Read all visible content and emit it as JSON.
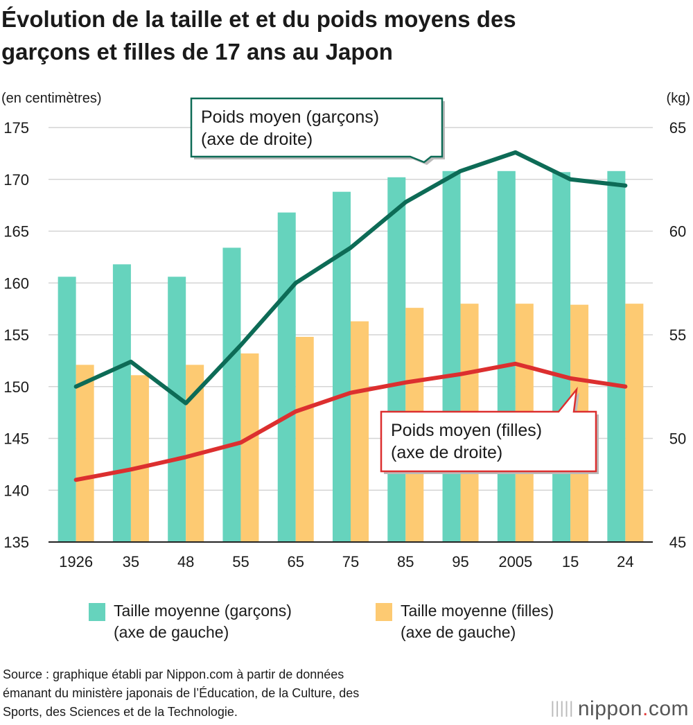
{
  "title": {
    "line1": "Évolution de la taille et et du poids moyens des",
    "line2": "garçons et filles de 17 ans au Japon"
  },
  "colors": {
    "boys_height": "#66d3bd",
    "girls_height": "#fdca72",
    "boys_weight": "#0d6b56",
    "girls_weight": "#dc2f2f",
    "grid": "#d4d4d4"
  },
  "chart_data": {
    "type": "bar",
    "left_axis_unit": "(en centimètres)",
    "right_axis_unit": "(kg)",
    "left_ylim": [
      135,
      175
    ],
    "left_ticks": [
      "175",
      "170",
      "165",
      "160",
      "155",
      "150",
      "145",
      "140",
      "135"
    ],
    "right_ylim": [
      45,
      65
    ],
    "right_ticks": [
      "65",
      "60",
      "55",
      "50",
      "45"
    ],
    "categories": [
      "1926",
      "35",
      "48",
      "55",
      "65",
      "75",
      "85",
      "95",
      "2005",
      "15",
      "24"
    ],
    "series": [
      {
        "name": "Taille moyenne (garçons) (axe de gauche)",
        "type": "bar",
        "axis": "left",
        "values": [
          160.6,
          161.8,
          160.6,
          163.4,
          166.8,
          168.8,
          170.2,
          170.8,
          170.8,
          170.7,
          170.8
        ]
      },
      {
        "name": "Taille moyenne (filles) (axe de gauche)",
        "type": "bar",
        "axis": "left",
        "values": [
          152.1,
          151.1,
          152.1,
          153.2,
          154.8,
          156.3,
          157.6,
          158.0,
          158.0,
          157.9,
          158.0
        ]
      },
      {
        "name": "Poids moyen (garçons) (axe de droite)",
        "type": "line",
        "axis": "right",
        "values": [
          52.5,
          53.7,
          51.7,
          54.5,
          57.5,
          59.2,
          61.4,
          62.9,
          63.8,
          62.5,
          62.2
        ]
      },
      {
        "name": "Poids moyen (filles) (axe de droite)",
        "type": "line",
        "axis": "right",
        "values": [
          48.0,
          48.5,
          49.1,
          49.8,
          51.3,
          52.2,
          52.7,
          53.1,
          53.6,
          52.9,
          52.5
        ]
      }
    ],
    "callouts": {
      "boys_weight": {
        "line1": "Poids moyen (garçons)",
        "line2": "(axe de droite)"
      },
      "girls_weight": {
        "line1": "Poids moyen (filles)",
        "line2": "(axe de droite)"
      }
    }
  },
  "legend": {
    "boys": {
      "line1": "Taille moyenne (garçons)",
      "line2": "(axe de gauche)"
    },
    "girls": {
      "line1": "Taille moyenne (filles)",
      "line2": "(axe de gauche)"
    }
  },
  "source": {
    "line1": "Source : graphique établi par Nippon.com à partir de données",
    "line2": "émanant du ministère japonais de l’Éducation, de la Culture, des",
    "line3": "Sports, des Sciences et de la Technologie."
  },
  "brand": {
    "name": "nippon",
    "dot": ".",
    "tld": "com"
  }
}
